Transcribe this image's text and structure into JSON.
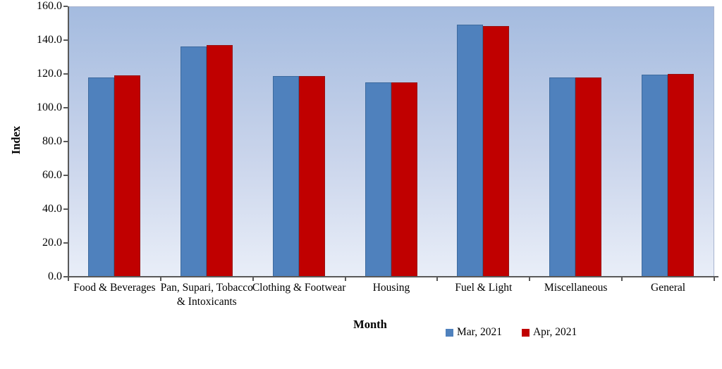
{
  "chart_data": {
    "type": "bar",
    "title": "",
    "categories": [
      "Food & Beverages",
      "Pan, Supari, Tobacco\n& Intoxicants",
      "Clothing & Footwear",
      "Housing",
      "Fuel & Light",
      "Miscellaneous",
      "General"
    ],
    "series": [
      {
        "name": "Mar, 2021",
        "color": "#4F81BD",
        "edge_color": "#3D6A9E",
        "values": [
          118.3,
          136.7,
          118.9,
          115.2,
          149.4,
          118.2,
          119.7
        ]
      },
      {
        "name": "Apr, 2021",
        "color": "#C00000",
        "edge_color": "#991010",
        "values": [
          119.5,
          137.5,
          119.0,
          115.3,
          148.9,
          118.4,
          120.3
        ]
      }
    ],
    "xlabel": "Month",
    "ylabel": "Index",
    "ylim": [
      0,
      160
    ],
    "ytick_step": 20,
    "y_ticks": [
      "160.0",
      "140.0",
      "120.0",
      "100.0",
      "80.0",
      "60.0",
      "40.0",
      "20.0",
      "0.0"
    ],
    "legend_position": "bottom",
    "grid": false,
    "plot_bg_gradient_top": "#A4BBDF",
    "plot_bg_gradient_bottom": "#E9EEF8"
  }
}
